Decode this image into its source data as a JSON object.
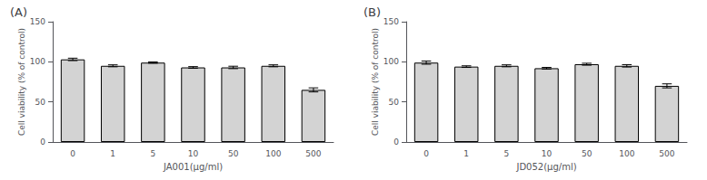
{
  "chart_data": [
    {
      "type": "bar",
      "title": "(A)",
      "xlabel": "JA001(μg/ml)",
      "ylabel": "Cell viability (% of control)",
      "categories": [
        "0",
        "1",
        "5",
        "10",
        "50",
        "100",
        "500"
      ],
      "values": [
        103,
        95,
        99,
        93,
        93,
        95,
        65
      ],
      "errors": [
        1.5,
        1.2,
        0.8,
        1.0,
        1.5,
        1.2,
        2.5
      ],
      "color": "#d3d3d3",
      "ylim": [
        0,
        150
      ],
      "yticks": [
        0,
        50,
        100,
        150
      ],
      "grid": false
    },
    {
      "type": "bar",
      "title": "(B)",
      "xlabel": "JD052(μg/ml)",
      "ylabel": "Cell viability (% of control)",
      "categories": [
        "0",
        "1",
        "5",
        "10",
        "50",
        "100",
        "500"
      ],
      "values": [
        99,
        94,
        95,
        92,
        97,
        95,
        70
      ],
      "errors": [
        2.0,
        1.0,
        1.2,
        1.0,
        1.2,
        1.5,
        2.5
      ],
      "color": "#d3d3d3",
      "ylim": [
        0,
        150
      ],
      "yticks": [
        0,
        50,
        100,
        150
      ],
      "grid": false
    }
  ]
}
